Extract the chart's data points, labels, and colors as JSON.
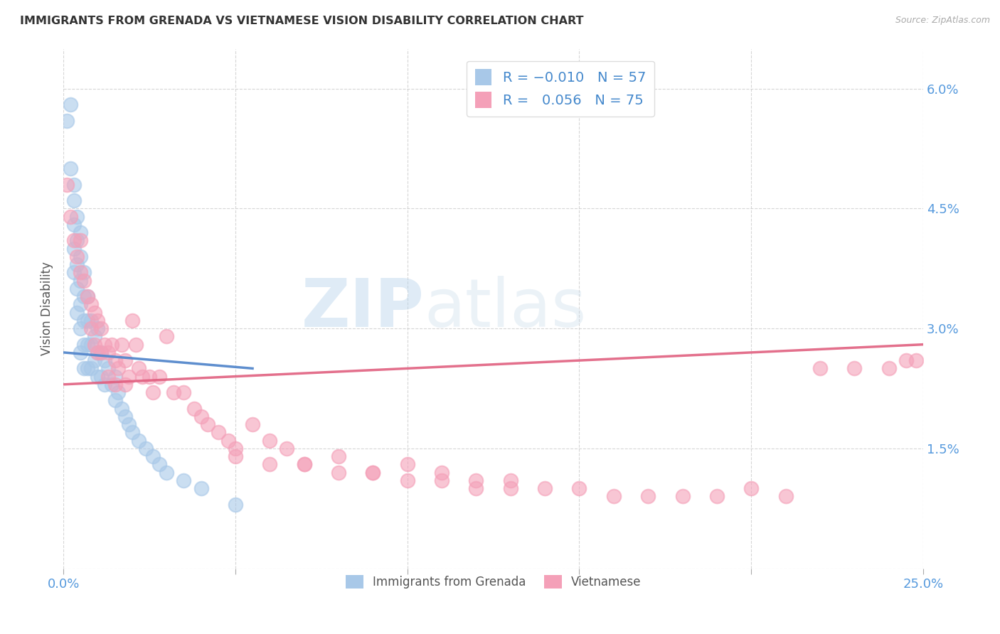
{
  "title": "IMMIGRANTS FROM GRENADA VS VIETNAMESE VISION DISABILITY CORRELATION CHART",
  "source": "Source: ZipAtlas.com",
  "ylabel": "Vision Disability",
  "x_min": 0.0,
  "x_max": 0.25,
  "y_min": 0.0,
  "y_max": 0.065,
  "grenada_R": -0.01,
  "grenada_N": 57,
  "vietnamese_R": 0.056,
  "vietnamese_N": 75,
  "grenada_color": "#a8c8e8",
  "vietnamese_color": "#f4a0b8",
  "trendline_grenada_color": "#5588cc",
  "trendline_vietnamese_color": "#e06080",
  "watermark_zip_color": "#c0d8ee",
  "watermark_atlas_color": "#b0c8e0",
  "grenada_x": [
    0.001,
    0.002,
    0.002,
    0.003,
    0.003,
    0.003,
    0.003,
    0.003,
    0.004,
    0.004,
    0.004,
    0.004,
    0.004,
    0.005,
    0.005,
    0.005,
    0.005,
    0.005,
    0.005,
    0.006,
    0.006,
    0.006,
    0.006,
    0.006,
    0.007,
    0.007,
    0.007,
    0.007,
    0.008,
    0.008,
    0.008,
    0.009,
    0.009,
    0.01,
    0.01,
    0.01,
    0.011,
    0.011,
    0.012,
    0.012,
    0.013,
    0.014,
    0.015,
    0.015,
    0.016,
    0.017,
    0.018,
    0.019,
    0.02,
    0.022,
    0.024,
    0.026,
    0.028,
    0.03,
    0.035,
    0.04,
    0.05
  ],
  "grenada_y": [
    0.056,
    0.058,
    0.05,
    0.048,
    0.046,
    0.043,
    0.04,
    0.037,
    0.044,
    0.041,
    0.038,
    0.035,
    0.032,
    0.042,
    0.039,
    0.036,
    0.033,
    0.03,
    0.027,
    0.037,
    0.034,
    0.031,
    0.028,
    0.025,
    0.034,
    0.031,
    0.028,
    0.025,
    0.031,
    0.028,
    0.025,
    0.029,
    0.026,
    0.03,
    0.027,
    0.024,
    0.027,
    0.024,
    0.026,
    0.023,
    0.025,
    0.023,
    0.024,
    0.021,
    0.022,
    0.02,
    0.019,
    0.018,
    0.017,
    0.016,
    0.015,
    0.014,
    0.013,
    0.012,
    0.011,
    0.01,
    0.008
  ],
  "vietnamese_x": [
    0.001,
    0.002,
    0.003,
    0.004,
    0.005,
    0.005,
    0.006,
    0.007,
    0.008,
    0.008,
    0.009,
    0.009,
    0.01,
    0.01,
    0.011,
    0.011,
    0.012,
    0.013,
    0.013,
    0.014,
    0.015,
    0.015,
    0.016,
    0.017,
    0.018,
    0.018,
    0.019,
    0.02,
    0.021,
    0.022,
    0.023,
    0.025,
    0.026,
    0.028,
    0.03,
    0.032,
    0.035,
    0.038,
    0.04,
    0.042,
    0.045,
    0.048,
    0.05,
    0.055,
    0.06,
    0.065,
    0.07,
    0.08,
    0.09,
    0.1,
    0.11,
    0.12,
    0.13,
    0.14,
    0.15,
    0.16,
    0.17,
    0.18,
    0.19,
    0.2,
    0.21,
    0.22,
    0.23,
    0.24,
    0.245,
    0.248,
    0.05,
    0.06,
    0.07,
    0.08,
    0.09,
    0.1,
    0.11,
    0.12,
    0.13
  ],
  "vietnamese_y": [
    0.048,
    0.044,
    0.041,
    0.039,
    0.041,
    0.037,
    0.036,
    0.034,
    0.033,
    0.03,
    0.032,
    0.028,
    0.031,
    0.027,
    0.03,
    0.027,
    0.028,
    0.027,
    0.024,
    0.028,
    0.026,
    0.023,
    0.025,
    0.028,
    0.026,
    0.023,
    0.024,
    0.031,
    0.028,
    0.025,
    0.024,
    0.024,
    0.022,
    0.024,
    0.029,
    0.022,
    0.022,
    0.02,
    0.019,
    0.018,
    0.017,
    0.016,
    0.015,
    0.018,
    0.016,
    0.015,
    0.013,
    0.014,
    0.012,
    0.013,
    0.012,
    0.011,
    0.011,
    0.01,
    0.01,
    0.009,
    0.009,
    0.009,
    0.009,
    0.01,
    0.009,
    0.025,
    0.025,
    0.025,
    0.026,
    0.026,
    0.014,
    0.013,
    0.013,
    0.012,
    0.012,
    0.011,
    0.011,
    0.01,
    0.01
  ],
  "grenada_trend_x0": 0.0,
  "grenada_trend_y0": 0.027,
  "grenada_trend_x1": 0.055,
  "grenada_trend_y1": 0.025,
  "vietnamese_trend_x0": 0.0,
  "vietnamese_trend_y0": 0.023,
  "vietnamese_trend_x1": 0.25,
  "vietnamese_trend_y1": 0.028
}
